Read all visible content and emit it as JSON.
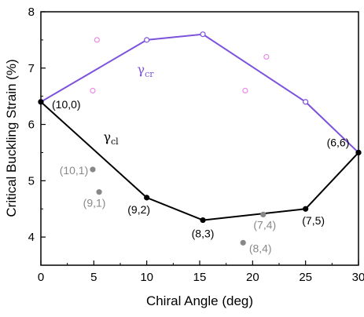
{
  "chart_data": {
    "type": "scatter",
    "xlabel": "Chiral Angle (deg)",
    "ylabel": "Critical Buckling Strain (%)",
    "xlim": [
      0,
      30
    ],
    "ylim": [
      3.5,
      8
    ],
    "xticks": [
      "0",
      "5",
      "10",
      "15",
      "20",
      "25",
      "30"
    ],
    "yticks": [
      "4",
      "5",
      "6",
      "7",
      "8"
    ],
    "grid": false,
    "series": [
      {
        "name": "γcr",
        "label_main": "γ",
        "label_sub": "cr",
        "color": "#7d52dd",
        "style": "line-open-markers",
        "x": [
          0,
          10,
          15.3,
          25,
          30
        ],
        "y": [
          6.4,
          7.5,
          7.6,
          6.4,
          5.5
        ]
      },
      {
        "name": "γcl",
        "label_main": "γ",
        "label_sub": "cl",
        "color": "#000000",
        "style": "line-filled-markers",
        "x": [
          0,
          10,
          15.3,
          25,
          30
        ],
        "y": [
          6.4,
          4.7,
          4.3,
          4.5,
          5.5
        ]
      },
      {
        "color": "#e88be6",
        "style": "open-markers",
        "x": [
          5.3,
          4.9,
          19.3,
          21.3
        ],
        "y": [
          7.5,
          6.6,
          6.6,
          7.2
        ]
      },
      {
        "color": "#888888",
        "style": "filled-markers",
        "x": [
          4.9,
          5.5,
          19.1,
          21.0
        ],
        "y": [
          5.2,
          4.8,
          3.9,
          4.4
        ]
      }
    ],
    "annotations": [
      {
        "text": "(10,0)",
        "x": 0,
        "y": 6.4,
        "color": "#000000"
      },
      {
        "text": "(9,2)",
        "x": 10,
        "y": 4.7,
        "color": "#000000"
      },
      {
        "text": "(8,3)",
        "x": 15.3,
        "y": 4.3,
        "color": "#000000"
      },
      {
        "text": "(7,5)",
        "x": 25,
        "y": 4.5,
        "color": "#000000"
      },
      {
        "text": "(6,6)",
        "x": 30,
        "y": 5.5,
        "color": "#000000"
      },
      {
        "text": "(10,1)",
        "x": 4.9,
        "y": 5.2,
        "color": "#888888"
      },
      {
        "text": "(9,1)",
        "x": 5.5,
        "y": 4.8,
        "color": "#888888"
      },
      {
        "text": "(8,4)",
        "x": 19.1,
        "y": 3.9,
        "color": "#888888"
      },
      {
        "text": "(7,4)",
        "x": 21.0,
        "y": 4.4,
        "color": "#888888"
      }
    ]
  }
}
